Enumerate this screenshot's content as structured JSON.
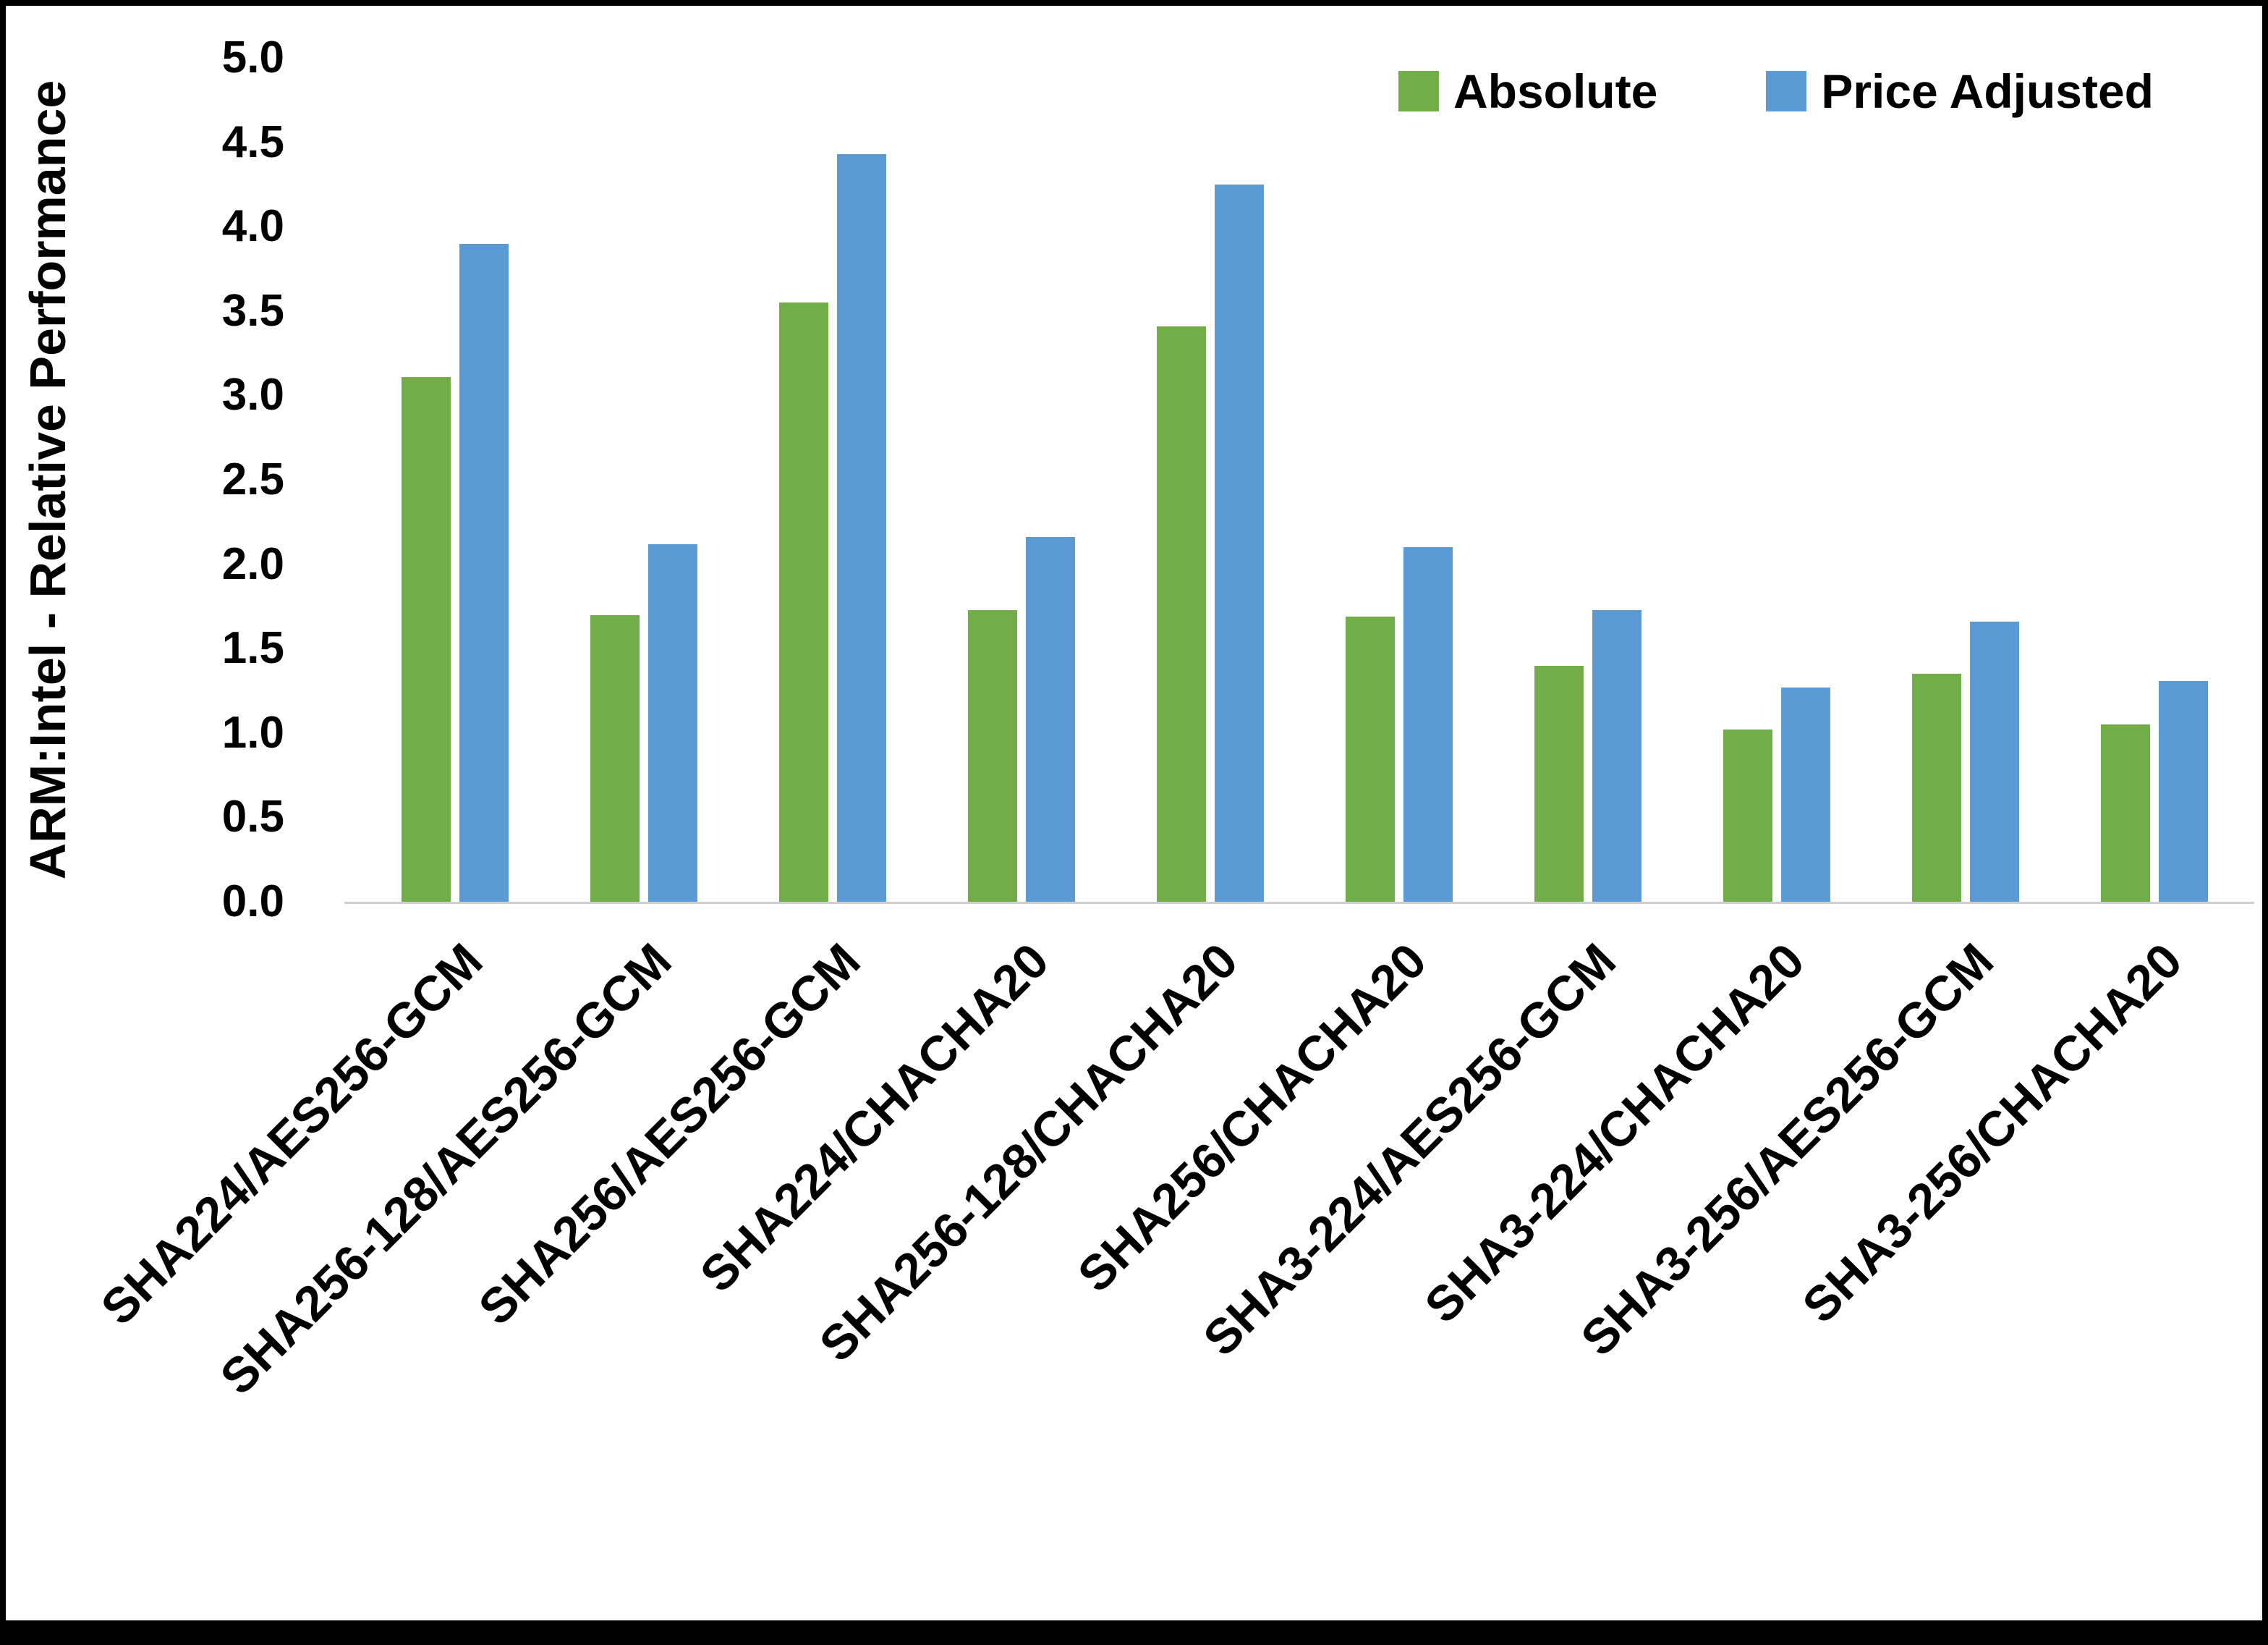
{
  "chart_data": {
    "type": "bar",
    "title": "",
    "xlabel": "",
    "ylabel": "ARM:Intel - Relative Performance",
    "ylim": [
      0,
      5
    ],
    "ytick_step": 0.5,
    "yticks": [
      "0.0",
      "0.5",
      "1.0",
      "1.5",
      "2.0",
      "2.5",
      "3.0",
      "3.5",
      "4.0",
      "4.5",
      "5.0"
    ],
    "grid": false,
    "legend_position": "top-right",
    "axis_line_color": "#cfcfcf",
    "frame_color": "#000000",
    "categories": [
      "SHA224/AES256-GCM",
      "SHA256-128/AES256-GCM",
      "SHA256/AES256-GCM",
      "SHA224/CHACHA20",
      "SHA256-128/CHACHA20",
      "SHA256/CHACHA20",
      "SHA3-224/AES256-GCM",
      "SHA3-224/CHACHA20",
      "SHA3-256/AES256-GCM",
      "SHA3-256/CHACHA20"
    ],
    "series": [
      {
        "name": "Absolute",
        "color": "#70AD47",
        "values": [
          3.11,
          1.7,
          3.55,
          1.73,
          3.41,
          1.69,
          1.4,
          1.02,
          1.35,
          1.05
        ]
      },
      {
        "name": "Price Adjusted",
        "color": "#5B9BD5",
        "values": [
          3.9,
          2.12,
          4.43,
          2.16,
          4.25,
          2.1,
          1.73,
          1.27,
          1.66,
          1.31
        ]
      }
    ]
  }
}
